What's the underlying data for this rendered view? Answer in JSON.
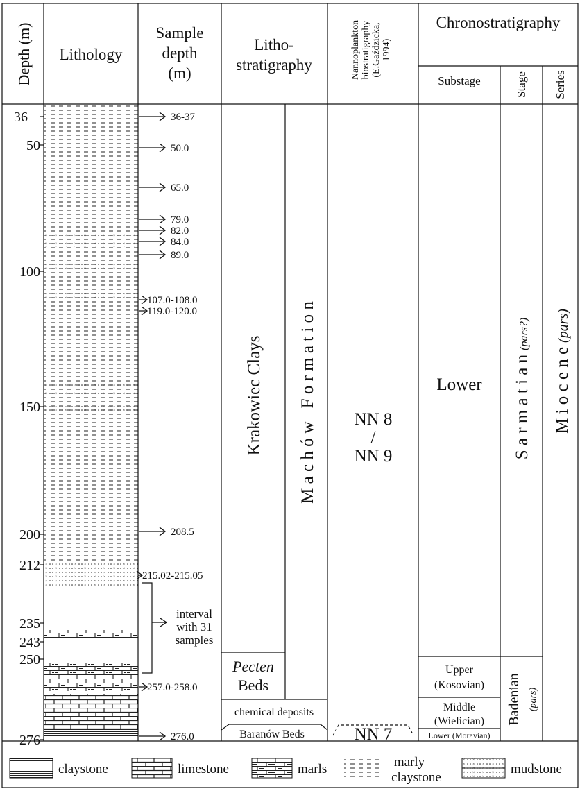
{
  "headers": {
    "depth": "Depth (m)",
    "lithology": "Lithology",
    "sample_depth": [
      "Sample",
      "depth",
      "(m)"
    ],
    "lithostrat": [
      "Litho-",
      "stratigraphy"
    ],
    "nanno": [
      "Nannoplankton",
      "biostratigraphy",
      "(E.Gaździcka,",
      "1994)"
    ],
    "chrono": "Chronostratigraphy",
    "substage": "Substage",
    "stage": "Stage",
    "series": "Series"
  },
  "depth_ticks": [
    "36",
    "50",
    "100",
    "150",
    "200",
    "212",
    "235",
    "243",
    "250",
    "276"
  ],
  "samples": [
    "36-37",
    "50.0",
    "65.0",
    "79.0",
    "82.0",
    "84.0",
    "89.0",
    "107.0-108.0",
    "119.0-120.0",
    "208.5",
    "215.02-215.05",
    "257.0-258.0",
    "276.0"
  ],
  "interval_note": [
    "interval",
    "with 31",
    "samples"
  ],
  "lithostrat": {
    "krakowiec": "Krakowiec Clays",
    "machow": "M a c h ó w   F o r m a t i o n",
    "pecten_italic": "Pecten",
    "pecten_rest": "Beds",
    "chemical": "chemical deposits",
    "baranow": "Baranów Beds"
  },
  "nanno": {
    "upper": "NN 8",
    "slash": "/",
    "lower": "NN 9",
    "nn7": "NN 7"
  },
  "chrono": {
    "lower": "Lower",
    "upper": "Upper",
    "kosovian": "(Kosovian)",
    "middle": "Middle",
    "wielician": "(Wielician)",
    "moravian": "Lower (Moravian)",
    "sarmatian": "S a r m a t i a n",
    "sarmatian_pars": "(pars?)",
    "badenian": "Badenian",
    "badenian_pars": "(pars)",
    "miocene": "M i o c e n e",
    "miocene_pars": "(pars)"
  },
  "legend": {
    "claystone": "claystone",
    "limestone": "limestone",
    "marls": "marls",
    "marly_1": "marly",
    "marly_2": "claystone",
    "mudstone": "mudstone"
  }
}
